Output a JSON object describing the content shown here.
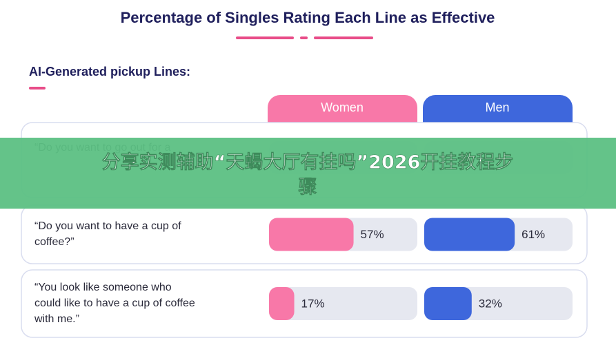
{
  "header": {
    "title": "Percentage of Singles Rating Each Line as Effective",
    "subtitle": "AI-Generated pickup Lines:"
  },
  "columns": [
    {
      "name": "Women",
      "color": "#f878a8"
    },
    {
      "name": "Men",
      "color": "#3e67dc"
    }
  ],
  "rows": [
    {
      "quote": [
        "“Do you want to go out for a"
      ]
    },
    {
      "quote": [
        "“Do you want to have a cup of",
        "coffee?”"
      ],
      "values": [
        57,
        61
      ],
      "value_labels": [
        "57%",
        "61%"
      ]
    },
    {
      "quote": [
        "“You look like someone who",
        "could like to have a cup of coffee",
        "with me.”"
      ],
      "values": [
        17,
        32
      ],
      "value_labels": [
        "17%",
        "32%"
      ]
    }
  ],
  "banner": {
    "lines": [
      "分享实测辅助“天蝎大厅有挂吗”2026开挂教程步",
      "骤"
    ]
  }
}
